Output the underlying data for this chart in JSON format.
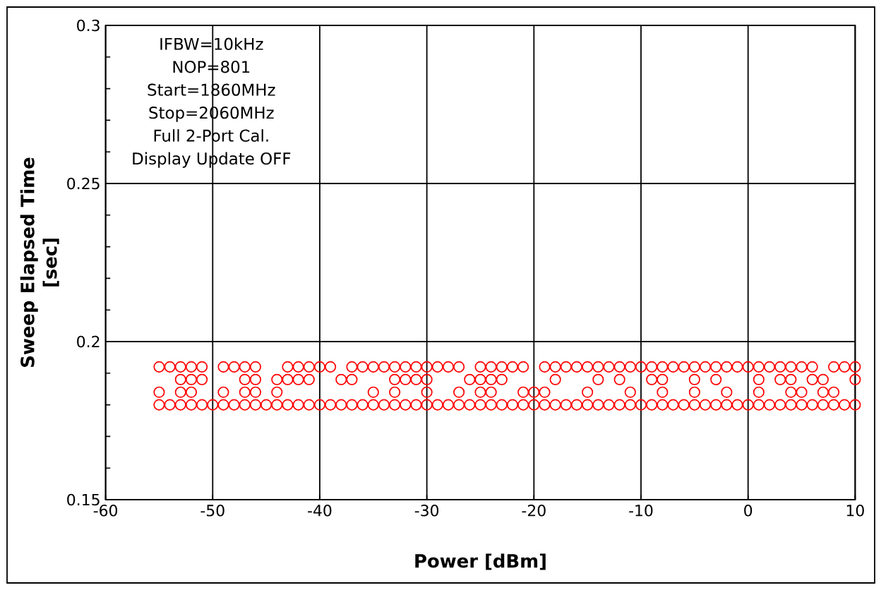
{
  "chart_data": {
    "type": "scatter",
    "xlabel": "Power [dBm]",
    "ylabel": "Sweep Elapsed Time [sec]",
    "annotations": [
      "IFBW=10kHz",
      "NOP=801",
      "Start=1860MHz",
      "Stop=2060MHz",
      "Full 2-Port Cal.",
      "Display Update OFF"
    ],
    "xlim": [
      -60,
      10
    ],
    "xticks": [
      -60,
      -50,
      -40,
      -30,
      -20,
      -10,
      0,
      10
    ],
    "ylim": [
      0.15,
      0.3
    ],
    "yticks": [
      0.15,
      {
        "value": 0.16,
        "label": null
      },
      {
        "value": 0.17,
        "label": null
      },
      {
        "value": 0.18,
        "label": null
      },
      {
        "value": 0.19,
        "label": null
      },
      0.2,
      {
        "value": 0.21,
        "label": null
      },
      {
        "value": 0.22,
        "label": null
      },
      {
        "value": 0.23,
        "label": null
      },
      {
        "value": 0.24,
        "label": null
      },
      0.25,
      {
        "value": 0.26,
        "label": null
      },
      {
        "value": 0.27,
        "label": null
      },
      {
        "value": 0.28,
        "label": null
      },
      {
        "value": 0.29,
        "label": null
      },
      0.3
    ],
    "grid": true,
    "marker": "circle",
    "series": [
      {
        "color": "#ff0000",
        "x": [
          -55,
          -54,
          -53,
          -52,
          -51,
          -49,
          -48,
          -47,
          -46,
          -43,
          -42,
          -41,
          -40,
          -39,
          -37,
          -36,
          -35,
          -34,
          -33,
          -32,
          -31,
          -30,
          -29,
          -28,
          -27,
          -25,
          -24,
          -23,
          -22,
          -21,
          -19,
          -18,
          -17,
          -16,
          -15,
          -14,
          -13,
          -12,
          -11,
          -10,
          -9,
          -8,
          -7,
          -6,
          -5,
          -4,
          -3,
          -2,
          -1,
          0,
          1,
          2,
          3,
          4,
          5,
          6,
          8,
          9,
          10,
          -53,
          -52,
          -51,
          -47,
          -46,
          -44,
          -43,
          -42,
          -41,
          -38,
          -37,
          -33,
          -32,
          -31,
          -30,
          -26,
          -25,
          -24,
          -23,
          -18,
          -14,
          -12,
          -9,
          -8,
          -5,
          -3,
          1,
          3,
          4,
          6,
          7,
          10,
          -55,
          -53,
          -52,
          -49,
          -47,
          -46,
          -44,
          -35,
          -33,
          -30,
          -27,
          -25,
          -24,
          -21,
          -20,
          -19,
          -15,
          -11,
          -8,
          -5,
          -2,
          1,
          4,
          5,
          7,
          8,
          -55,
          -54,
          -53,
          -52,
          -51,
          -50,
          -49,
          -48,
          -47,
          -46,
          -45,
          -44,
          -43,
          -42,
          -41,
          -40,
          -39,
          -38,
          -37,
          -36,
          -35,
          -34,
          -33,
          -32,
          -31,
          -30,
          -29,
          -28,
          -27,
          -26,
          -25,
          -24,
          -23,
          -22,
          -21,
          -20,
          -19,
          -18,
          -17,
          -16,
          -15,
          -14,
          -13,
          -12,
          -11,
          -10,
          -9,
          -8,
          -7,
          -6,
          -5,
          -4,
          -3,
          -2,
          -1,
          0,
          1,
          2,
          3,
          4,
          5,
          6,
          7,
          8,
          9,
          10
        ],
        "values": [
          0.192,
          0.192,
          0.192,
          0.192,
          0.192,
          0.192,
          0.192,
          0.192,
          0.192,
          0.192,
          0.192,
          0.192,
          0.192,
          0.192,
          0.192,
          0.192,
          0.192,
          0.192,
          0.192,
          0.192,
          0.192,
          0.192,
          0.192,
          0.192,
          0.192,
          0.192,
          0.192,
          0.192,
          0.192,
          0.192,
          0.192,
          0.192,
          0.192,
          0.192,
          0.192,
          0.192,
          0.192,
          0.192,
          0.192,
          0.192,
          0.192,
          0.192,
          0.192,
          0.192,
          0.192,
          0.192,
          0.192,
          0.192,
          0.192,
          0.192,
          0.192,
          0.192,
          0.192,
          0.192,
          0.192,
          0.192,
          0.192,
          0.192,
          0.192,
          0.188,
          0.188,
          0.188,
          0.188,
          0.188,
          0.188,
          0.188,
          0.188,
          0.188,
          0.188,
          0.188,
          0.188,
          0.188,
          0.188,
          0.188,
          0.188,
          0.188,
          0.188,
          0.188,
          0.188,
          0.188,
          0.188,
          0.188,
          0.188,
          0.188,
          0.188,
          0.188,
          0.188,
          0.188,
          0.188,
          0.188,
          0.188,
          0.184,
          0.184,
          0.184,
          0.184,
          0.184,
          0.184,
          0.184,
          0.184,
          0.184,
          0.184,
          0.184,
          0.184,
          0.184,
          0.184,
          0.184,
          0.184,
          0.184,
          0.184,
          0.184,
          0.184,
          0.184,
          0.184,
          0.184,
          0.184,
          0.184,
          0.184,
          0.18,
          0.18,
          0.18,
          0.18,
          0.18,
          0.18,
          0.18,
          0.18,
          0.18,
          0.18,
          0.18,
          0.18,
          0.18,
          0.18,
          0.18,
          0.18,
          0.18,
          0.18,
          0.18,
          0.18,
          0.18,
          0.18,
          0.18,
          0.18,
          0.18,
          0.18,
          0.18,
          0.18,
          0.18,
          0.18,
          0.18,
          0.18,
          0.18,
          0.18,
          0.18,
          0.18,
          0.18,
          0.18,
          0.18,
          0.18,
          0.18,
          0.18,
          0.18,
          0.18,
          0.18,
          0.18,
          0.18,
          0.18,
          0.18,
          0.18,
          0.18,
          0.18,
          0.18,
          0.18,
          0.18,
          0.18,
          0.18,
          0.18,
          0.18,
          0.18,
          0.18,
          0.18,
          0.18,
          0.18,
          0.18,
          0.18
        ]
      }
    ]
  }
}
